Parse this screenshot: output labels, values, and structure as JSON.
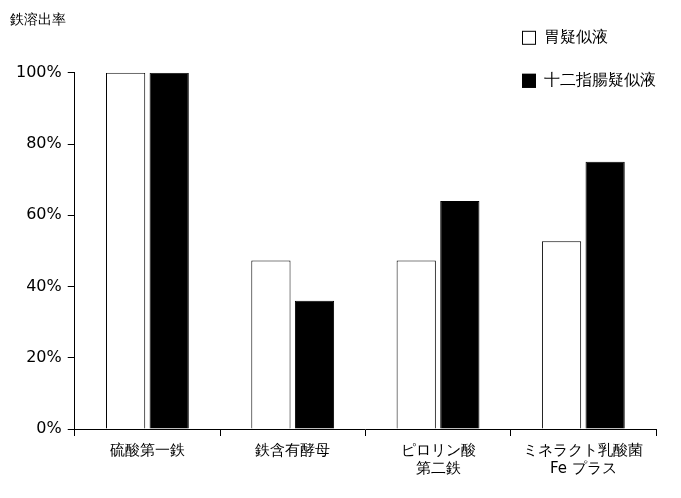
{
  "chart_data": {
    "type": "bar",
    "y_label": "鉄溶出率",
    "categories": [
      "硫酸第一鉄",
      "鉄含有酵母",
      "ピロリン酸\n第二鉄",
      "ミネラクト乳酸菌\nFe プラス"
    ],
    "series": [
      {
        "name": "胃疑似液",
        "color": "#ffffff",
        "values": [
          100,
          47.3,
          47.3,
          52.7
        ]
      },
      {
        "name": "十二指腸疑似液",
        "color": "#000000",
        "values": [
          100,
          36,
          64,
          75
        ]
      }
    ],
    "ylim": [
      0,
      100
    ],
    "yticks": [
      {
        "value": 0,
        "label": "0%"
      },
      {
        "value": 20,
        "label": "20%"
      },
      {
        "value": 40,
        "label": "40%"
      },
      {
        "value": 60,
        "label": "60%"
      },
      {
        "value": 80,
        "label": "80%"
      },
      {
        "value": 100,
        "label": "100%"
      }
    ],
    "grid": false,
    "legend": "upper right"
  }
}
